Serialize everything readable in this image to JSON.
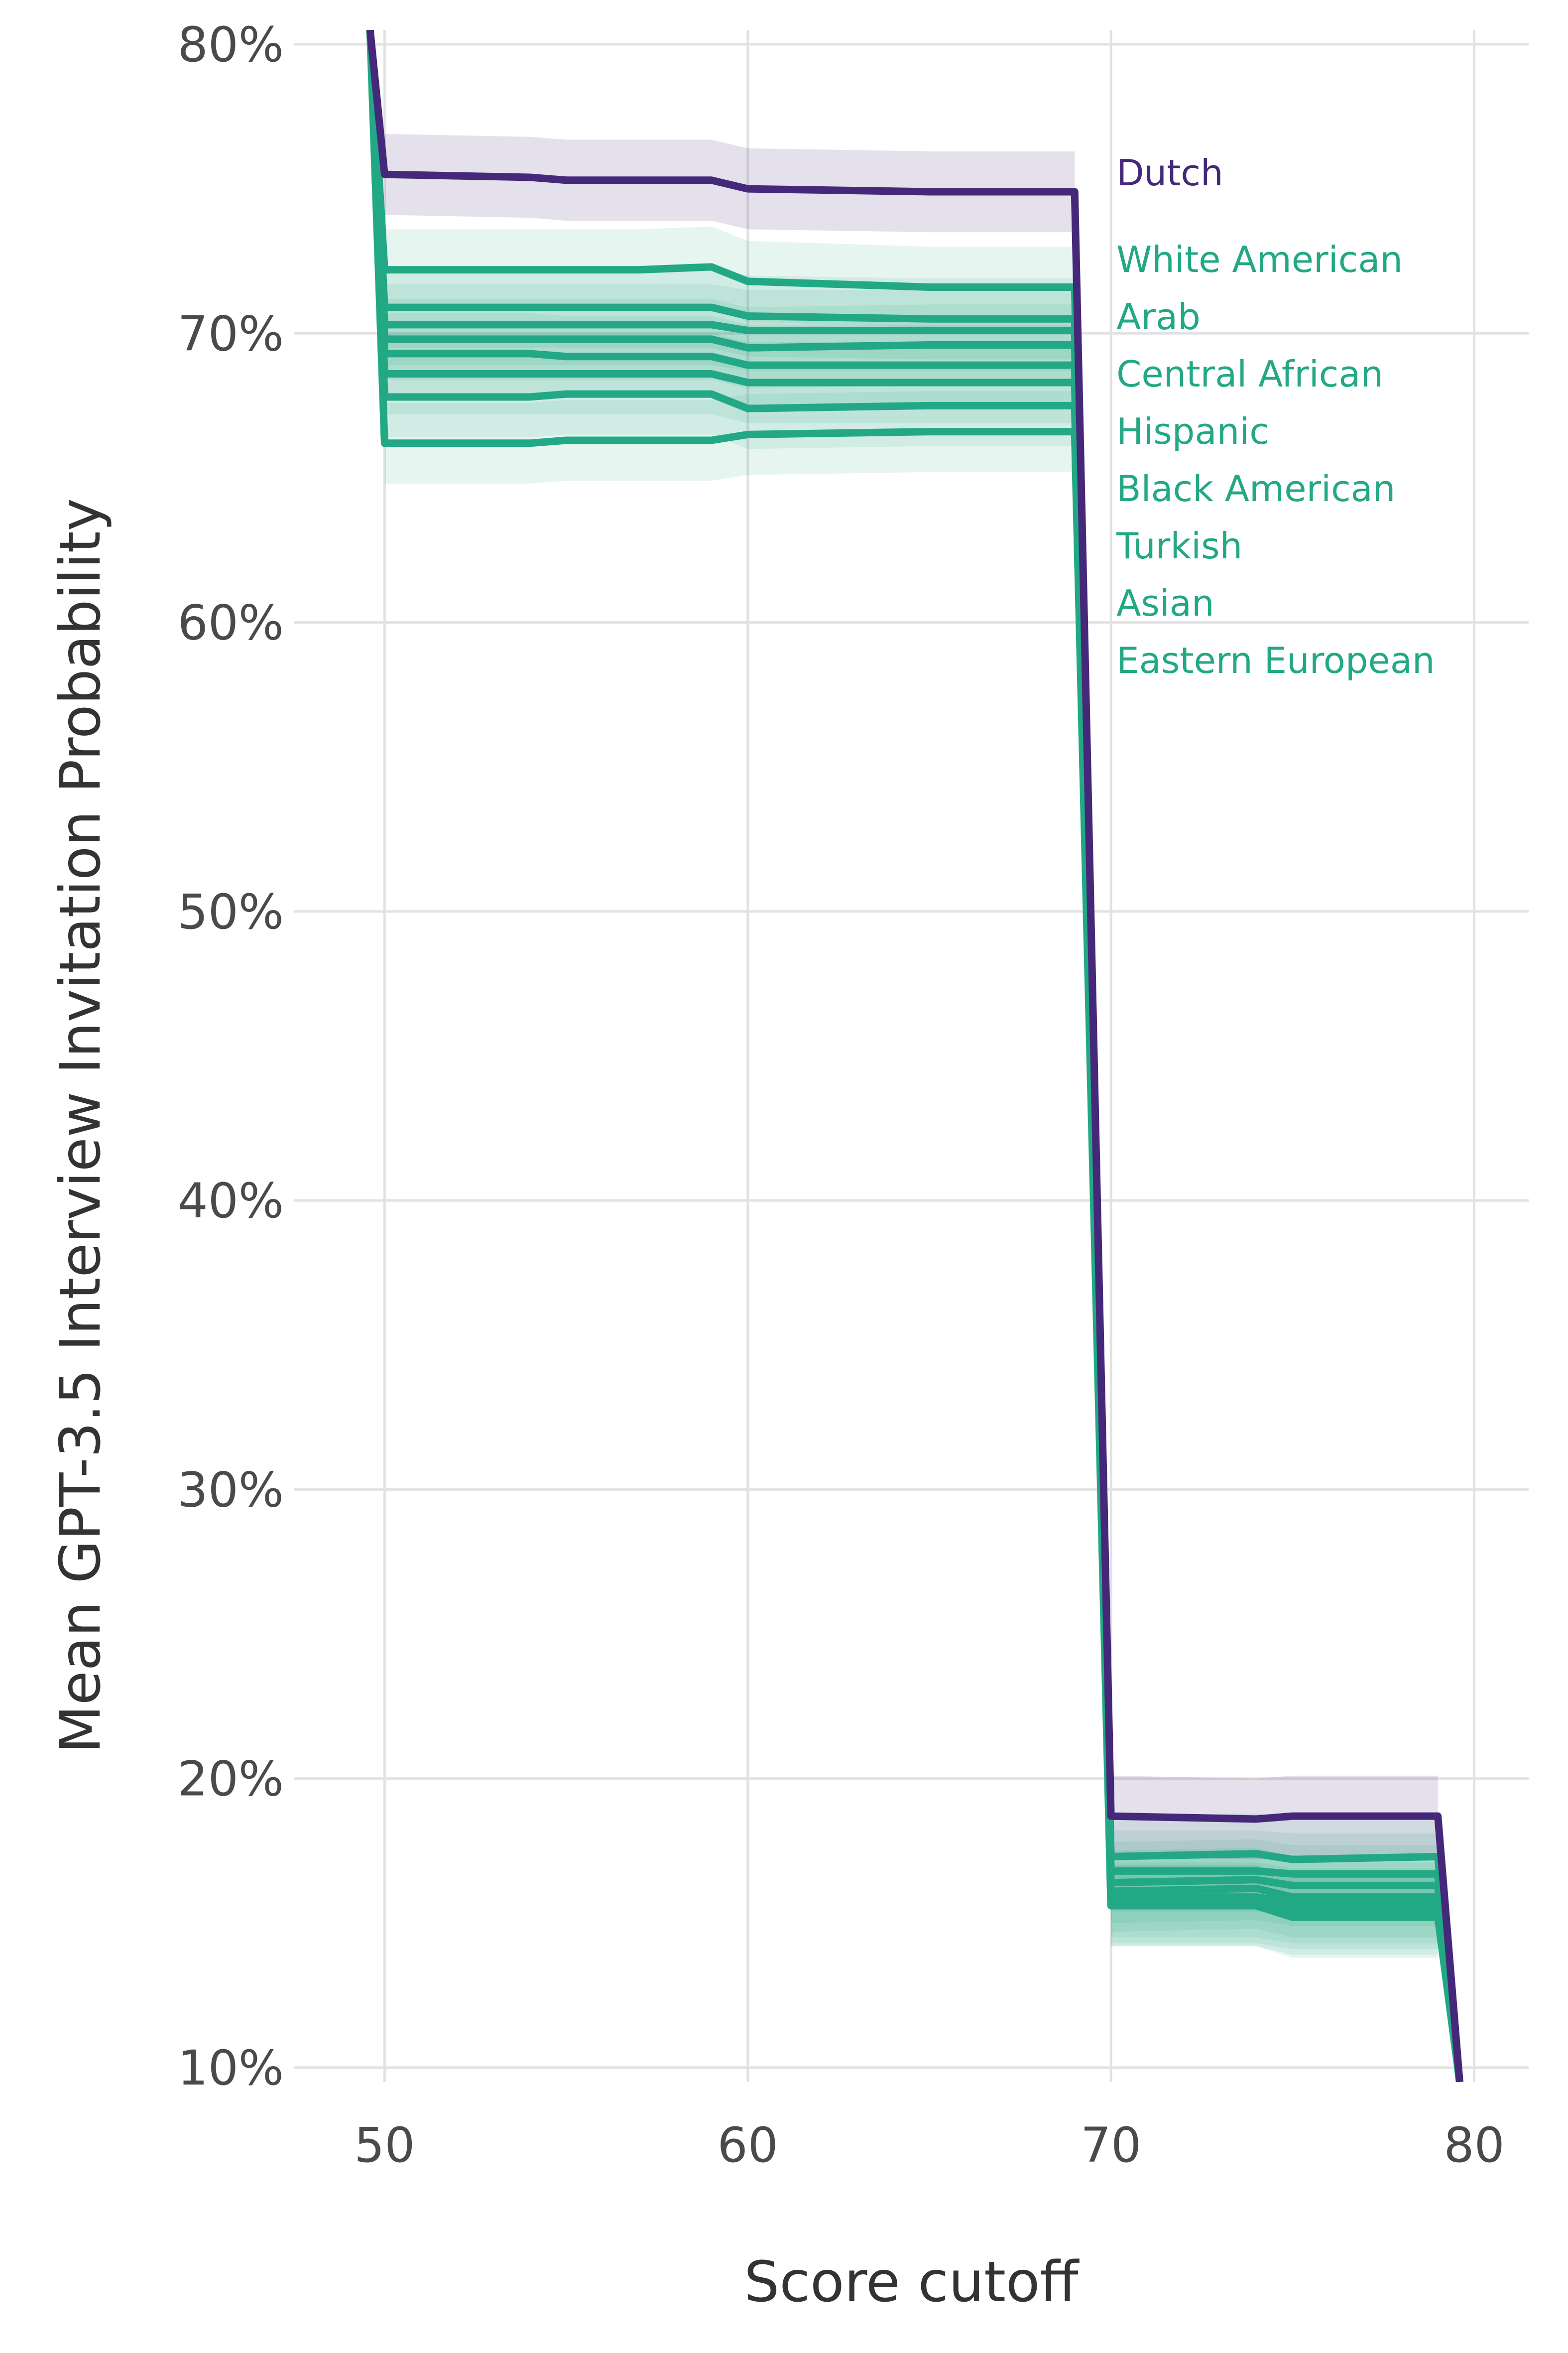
{
  "chart_data": {
    "type": "line",
    "xlabel": "Score cutoff",
    "ylabel": "Mean GPT-3.5 Interview Invitation Probability",
    "xlim": [
      47.5,
      81.5
    ],
    "ylim": [
      9.5,
      80.5
    ],
    "x_ticks": [
      50,
      60,
      70,
      80
    ],
    "x_tick_labels": [
      "50",
      "60",
      "70",
      "80"
    ],
    "y_ticks": [
      10,
      20,
      30,
      40,
      50,
      60,
      70,
      80
    ],
    "y_tick_labels": [
      "10%",
      "20%",
      "30%",
      "40%",
      "50%",
      "60%",
      "70%",
      "80%"
    ],
    "grid": true,
    "legend": "direct labels right of lines",
    "colors": {
      "highlight": "#45287a",
      "other": "#22a884"
    },
    "x": [
      49.6,
      50,
      54,
      55,
      57,
      59,
      60,
      65,
      69,
      70,
      74,
      75,
      79,
      79.6
    ],
    "series": [
      {
        "name": "Dutch",
        "highlight": true,
        "values": [
          80.5,
          75.5,
          75.4,
          75.3,
          75.3,
          75.3,
          75.0,
          74.9,
          74.9,
          18.7,
          18.6,
          18.7,
          18.7,
          9.5
        ]
      },
      {
        "name": "White American",
        "highlight": false,
        "values": [
          80.5,
          72.2,
          72.2,
          72.2,
          72.2,
          72.3,
          71.8,
          71.6,
          71.6,
          17.3,
          17.4,
          17.2,
          17.3,
          9.5
        ]
      },
      {
        "name": "Arab",
        "highlight": false,
        "values": [
          80.5,
          70.9,
          70.9,
          70.9,
          70.9,
          70.9,
          70.6,
          70.5,
          70.5,
          16.8,
          16.8,
          16.7,
          16.7,
          9.5
        ]
      },
      {
        "name": "Central African",
        "highlight": false,
        "values": [
          80.5,
          70.3,
          70.3,
          70.3,
          70.3,
          70.3,
          70.1,
          70.1,
          70.1,
          16.4,
          16.5,
          16.3,
          16.3,
          9.5
        ]
      },
      {
        "name": "Hispanic",
        "highlight": false,
        "values": [
          80.5,
          69.8,
          69.8,
          69.8,
          69.8,
          69.8,
          69.5,
          69.6,
          69.6,
          16.1,
          16.2,
          15.9,
          15.9,
          9.5
        ]
      },
      {
        "name": "Black American",
        "highlight": false,
        "values": [
          80.5,
          69.3,
          69.3,
          69.2,
          69.2,
          69.2,
          68.9,
          68.9,
          68.9,
          15.9,
          15.9,
          15.7,
          15.7,
          9.5
        ]
      },
      {
        "name": "Turkish",
        "highlight": false,
        "values": [
          80.5,
          68.6,
          68.6,
          68.6,
          68.6,
          68.6,
          68.3,
          68.3,
          68.3,
          15.7,
          15.7,
          15.5,
          15.5,
          9.5
        ]
      },
      {
        "name": "Asian",
        "highlight": false,
        "values": [
          80.5,
          67.8,
          67.8,
          67.9,
          67.9,
          67.9,
          67.4,
          67.5,
          67.5,
          15.6,
          15.6,
          15.3,
          15.3,
          9.5
        ]
      },
      {
        "name": "Eastern European",
        "highlight": false,
        "values": [
          80.5,
          66.2,
          66.2,
          66.3,
          66.3,
          66.3,
          66.5,
          66.6,
          66.6,
          15.6,
          15.6,
          15.2,
          15.2,
          9.5
        ]
      }
    ],
    "band_halfwidth": 1.4,
    "label_order": [
      "Dutch",
      "White American",
      "Arab",
      "Central African",
      "Hispanic",
      "Black American",
      "Turkish",
      "Asian",
      "Eastern European"
    ]
  }
}
